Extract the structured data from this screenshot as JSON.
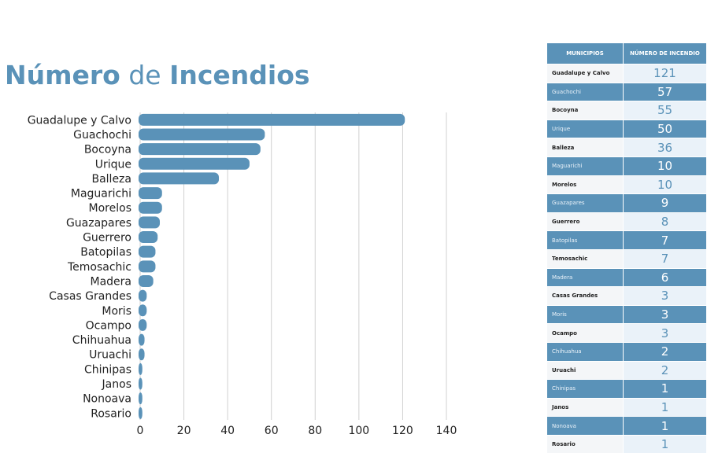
{
  "title": {
    "part1": "Número",
    "part2": " de ",
    "part3": "Incendios"
  },
  "colors": {
    "bar": "#5a92b8",
    "grid": "#d0d0d0",
    "title": "#5a92b8"
  },
  "table": {
    "header": [
      "MUNICIPIOS",
      "NÚMERO DE INCENDIO"
    ],
    "rows": [
      [
        "Guadalupe y Calvo",
        "121"
      ],
      [
        "Guachochi",
        "57"
      ],
      [
        "Bocoyna",
        "55"
      ],
      [
        "Urique",
        "50"
      ],
      [
        "Balleza",
        "36"
      ],
      [
        "Maguarichi",
        "10"
      ],
      [
        "Morelos",
        "10"
      ],
      [
        "Guazapares",
        "9"
      ],
      [
        "Guerrero",
        "8"
      ],
      [
        "Batopilas",
        "7"
      ],
      [
        "Temosachic",
        "7"
      ],
      [
        "Madera",
        "6"
      ],
      [
        "Casas Grandes",
        "3"
      ],
      [
        "Moris",
        "3"
      ],
      [
        "Ocampo",
        "3"
      ],
      [
        "Chihuahua",
        "2"
      ],
      [
        "Uruachi",
        "2"
      ],
      [
        "Chinipas",
        "1"
      ],
      [
        "Janos",
        "1"
      ],
      [
        "Nonoava",
        "1"
      ],
      [
        "Rosario",
        "1"
      ]
    ]
  },
  "chart_data": {
    "type": "bar",
    "orientation": "horizontal",
    "title": "Número de Incendios",
    "categories": [
      "Guadalupe y Calvo",
      "Guachochi",
      "Bocoyna",
      "Urique",
      "Balleza",
      "Maguarichi",
      "Morelos",
      "Guazapares",
      "Guerrero",
      "Batopilas",
      "Temosachic",
      "Madera",
      "Casas Grandes",
      "Moris",
      "Ocampo",
      "Chihuahua",
      "Uruachi",
      "Chinipas",
      "Janos",
      "Nonoava",
      "Rosario"
    ],
    "values": [
      121,
      57,
      55,
      50,
      36,
      10,
      10,
      9,
      8,
      7,
      7,
      6,
      3,
      3,
      3,
      2,
      2,
      1,
      1,
      1,
      1
    ],
    "xticks": [
      "0",
      "20",
      "40",
      "60",
      "80",
      "100",
      "120",
      "140"
    ],
    "xlim": [
      0,
      140
    ],
    "grid": true
  }
}
